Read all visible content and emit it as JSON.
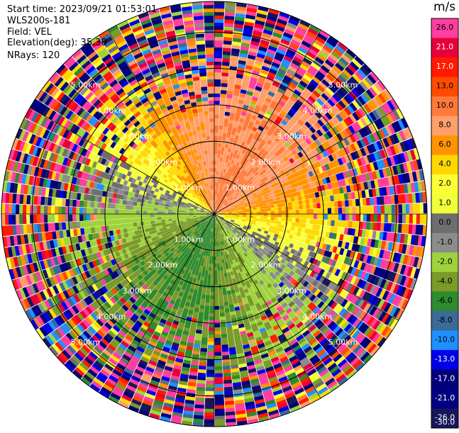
{
  "header": {
    "start_time": "Start time: 2023/09/21 01:53:01",
    "instrument": "WLS200s-181",
    "field": "Field: VEL",
    "elevation": "Elevation(deg): 35.30",
    "nrays": "NRays: 120"
  },
  "chart_data": {
    "type": "heatmap",
    "subtype": "polar PPI (plan position indicator) radial-velocity scan",
    "field": "VEL",
    "nrays": 120,
    "elevation_deg": 35.3,
    "max_range_km": 5.84,
    "range_ring_labels": [
      "1.00km",
      "2.00km",
      "3.00km",
      "4.00km",
      "5.00km"
    ],
    "range_rings_km": [
      1,
      2,
      3,
      4,
      5
    ],
    "colorbar": {
      "unit": "m/s",
      "tick_labels": [
        "26.0",
        "21.0",
        "17.0",
        "13.0",
        "10.0",
        "8.0",
        "6.0",
        "4.0",
        "2.0",
        "1.0",
        "0.0",
        "-1.0",
        "-2.0",
        "-4.0",
        "-6.0",
        "-8.0",
        "-10.0",
        "-13.0",
        "-17.0",
        "-21.0",
        "-26.0",
        "-30.0"
      ],
      "colors": [
        "#ff3ea0",
        "#e8003a",
        "#ff1a00",
        "#ff4a00",
        "#ff7a3a",
        "#ff9f6a",
        "#ff9400",
        "#ffd800",
        "#ffff38",
        "#f0ff3a",
        "#6e6e6e",
        "#8c8c8c",
        "#9ed33c",
        "#7a9a2a",
        "#2e8b2e",
        "#3a6a9a",
        "#1e90ff",
        "#0000e6",
        "#00007a",
        "#000080",
        "#17175a"
      ],
      "vmin": -30,
      "vmax": 30
    },
    "velocity_pattern": {
      "positive_toward_azimuth_deg": 25,
      "negative_toward_azimuth_deg": 205,
      "near_range_positive_mps": 9,
      "near_range_negative_mps": -7
    }
  }
}
